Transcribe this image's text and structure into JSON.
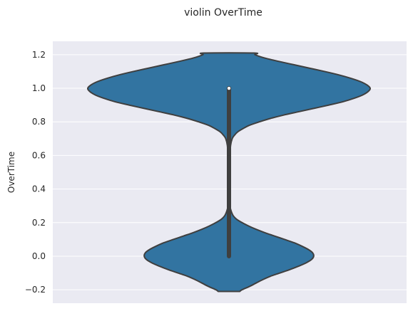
{
  "chart_data": {
    "type": "violin",
    "title": "violin OverTime",
    "xlabel": "",
    "ylabel": "OverTime",
    "ylim": [
      -0.28,
      1.28
    ],
    "yticks": [
      -0.2,
      0.0,
      0.2,
      0.4,
      0.6,
      0.8,
      1.0,
      1.2
    ],
    "ytick_labels": [
      "−0.2",
      "0.0",
      "0.2",
      "0.4",
      "0.6",
      "0.8",
      "1.0",
      "1.2"
    ],
    "grid": true,
    "style": "seaborn-darkgrid",
    "series": [
      {
        "density_profile": [
          [
            -0.21,
            0.1
          ],
          [
            -0.2,
            0.12
          ],
          [
            -0.18,
            0.19
          ],
          [
            -0.16,
            0.25
          ],
          [
            -0.14,
            0.31
          ],
          [
            -0.12,
            0.38
          ],
          [
            -0.1,
            0.47
          ],
          [
            -0.08,
            0.56
          ],
          [
            -0.06,
            0.64
          ],
          [
            -0.04,
            0.71
          ],
          [
            -0.02,
            0.76
          ],
          [
            0.0,
            0.78
          ],
          [
            0.02,
            0.77
          ],
          [
            0.04,
            0.73
          ],
          [
            0.06,
            0.67
          ],
          [
            0.08,
            0.6
          ],
          [
            0.1,
            0.51
          ],
          [
            0.12,
            0.42
          ],
          [
            0.14,
            0.33
          ],
          [
            0.16,
            0.25
          ],
          [
            0.18,
            0.18
          ],
          [
            0.2,
            0.12
          ],
          [
            0.22,
            0.07
          ],
          [
            0.24,
            0.04
          ],
          [
            0.26,
            0.025
          ],
          [
            0.28,
            0.015
          ],
          [
            0.3,
            0.01
          ],
          [
            0.4,
            0.008
          ],
          [
            0.5,
            0.008
          ],
          [
            0.6,
            0.01
          ],
          [
            0.66,
            0.015
          ],
          [
            0.7,
            0.03
          ],
          [
            0.72,
            0.05
          ],
          [
            0.74,
            0.08
          ],
          [
            0.76,
            0.13
          ],
          [
            0.78,
            0.19
          ],
          [
            0.8,
            0.28
          ],
          [
            0.82,
            0.38
          ],
          [
            0.84,
            0.5
          ],
          [
            0.86,
            0.64
          ],
          [
            0.88,
            0.78
          ],
          [
            0.9,
            0.92
          ],
          [
            0.92,
            1.05
          ],
          [
            0.94,
            1.15
          ],
          [
            0.96,
            1.23
          ],
          [
            0.98,
            1.28
          ],
          [
            1.0,
            1.3
          ],
          [
            1.02,
            1.27
          ],
          [
            1.04,
            1.21
          ],
          [
            1.06,
            1.12
          ],
          [
            1.08,
            1.01
          ],
          [
            1.1,
            0.88
          ],
          [
            1.12,
            0.74
          ],
          [
            1.14,
            0.6
          ],
          [
            1.16,
            0.46
          ],
          [
            1.18,
            0.33
          ],
          [
            1.2,
            0.24
          ],
          [
            1.21,
            0.23
          ]
        ],
        "whisker": [
          0.0,
          1.0
        ],
        "quartiles": [
          0.0,
          1.0
        ],
        "median": 1.0,
        "color": "#3274a1",
        "edge_color": "#3f3f3f"
      }
    ]
  },
  "colors": {
    "axes_bg": "#eaeaf2",
    "grid": "#ffffff",
    "violin_fill": "#3274a1",
    "violin_edge": "#3f3f3f",
    "box": "#3f3f3f",
    "median_dot": "#ffffff"
  }
}
